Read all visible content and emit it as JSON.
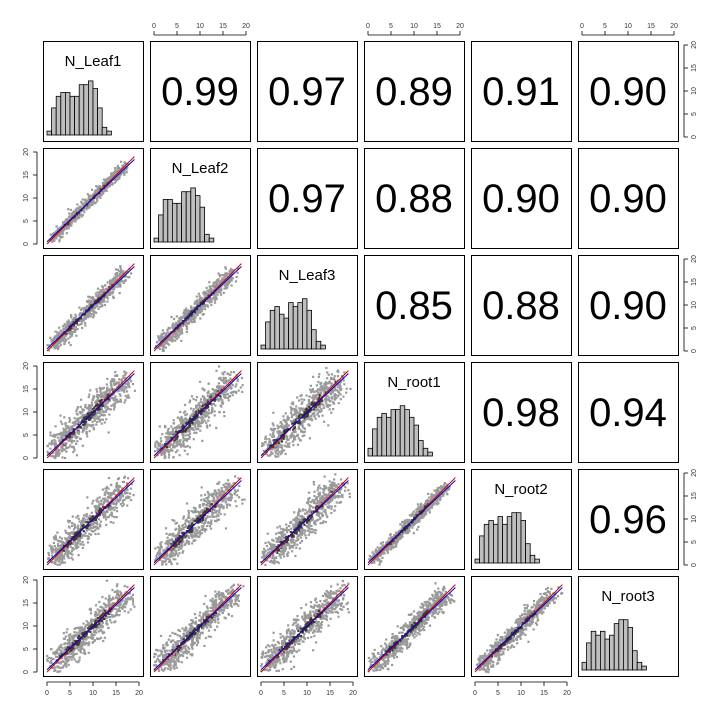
{
  "chart_data": {
    "type": "scatter",
    "variables": [
      "N_Leaf1",
      "N_Leaf2",
      "N_Leaf3",
      "N_root1",
      "N_root2",
      "N_root3"
    ],
    "axis_range": [
      0,
      20
    ],
    "axis_ticks": [
      "0",
      "5",
      "10",
      "15",
      "20"
    ],
    "correlations": [
      [
        "",
        "0.99",
        "0.97",
        "0.89",
        "0.91",
        "0.90"
      ],
      [
        "",
        "",
        "0.97",
        "0.88",
        "0.90",
        "0.90"
      ],
      [
        "",
        "",
        "",
        "0.85",
        "0.88",
        "0.90"
      ],
      [
        "",
        "",
        "",
        "",
        "0.98",
        "0.94"
      ],
      [
        "",
        "",
        "",
        "",
        "",
        "0.96"
      ],
      [
        "",
        "",
        "",
        "",
        "",
        ""
      ]
    ],
    "histogram_bin_width": 1,
    "histograms": [
      [
        1,
        7,
        10,
        11,
        11,
        10,
        10,
        13,
        13,
        14,
        12,
        7,
        2,
        1,
        0
      ],
      [
        1,
        7,
        11,
        11,
        10,
        10,
        13,
        13,
        14,
        12,
        9,
        2,
        1,
        0,
        0
      ],
      [
        1,
        7,
        10,
        11,
        9,
        8,
        12,
        11,
        12,
        13,
        10,
        5,
        2,
        1,
        0
      ],
      [
        2,
        7,
        10,
        11,
        10,
        12,
        12,
        13,
        12,
        10,
        8,
        4,
        2,
        1,
        0
      ],
      [
        1,
        7,
        10,
        11,
        10,
        12,
        10,
        12,
        13,
        13,
        11,
        5,
        2,
        1,
        0
      ],
      [
        2,
        7,
        10,
        9,
        10,
        8,
        9,
        12,
        13,
        13,
        11,
        5,
        2,
        1,
        0
      ]
    ],
    "scatter_spread": [
      [
        0,
        0,
        0,
        0,
        0,
        0
      ],
      [
        0.9,
        0,
        0,
        0,
        0,
        0
      ],
      [
        1.4,
        1.4,
        0,
        0,
        0,
        0
      ],
      [
        2.6,
        2.7,
        2.9,
        0,
        0,
        0
      ],
      [
        2.4,
        2.5,
        2.6,
        1.1,
        0,
        0
      ],
      [
        2.5,
        2.5,
        2.6,
        1.8,
        1.6,
        0
      ]
    ],
    "fit_lines": [
      {
        "color": "#cc0000",
        "slope": 1.0,
        "intercept": 0
      },
      {
        "color": "#0000cc",
        "slope": 0.94,
        "intercept": 0.5
      }
    ],
    "colors": {
      "point": "#9a9a9a",
      "point_dense": "#3a3a3a",
      "hist_fill": "#bebebe",
      "frame": "#000000"
    }
  }
}
